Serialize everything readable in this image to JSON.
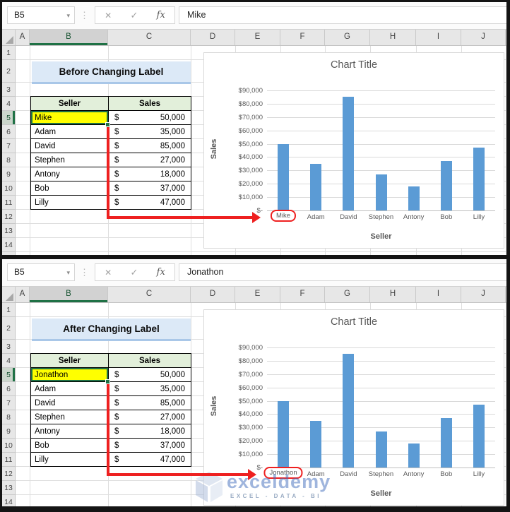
{
  "chart_data": [
    {
      "type": "bar",
      "title": "Chart Title",
      "xlabel": "Seller",
      "ylabel": "Sales",
      "categories": [
        "Mike",
        "Adam",
        "David",
        "Stephen",
        "Antony",
        "Bob",
        "Lilly"
      ],
      "values": [
        50000,
        35000,
        85000,
        27000,
        18000,
        37000,
        47000
      ],
      "ylim": [
        0,
        90000
      ],
      "ytick_labels": [
        "$-",
        "$10,000",
        "$20,000",
        "$30,000",
        "$40,000",
        "$50,000",
        "$60,000",
        "$70,000",
        "$80,000",
        "$90,000"
      ],
      "grid": true,
      "legend": false,
      "bar_color": "#5B9BD5",
      "highlighted_category": "Mike"
    },
    {
      "type": "bar",
      "title": "Chart Title",
      "xlabel": "Seller",
      "ylabel": "Sales",
      "categories": [
        "Jonathon",
        "Adam",
        "David",
        "Stephen",
        "Antony",
        "Bob",
        "Lilly"
      ],
      "values": [
        50000,
        35000,
        85000,
        27000,
        18000,
        37000,
        47000
      ],
      "ylim": [
        0,
        90000
      ],
      "ytick_labels": [
        "$-",
        "$10,000",
        "$20,000",
        "$30,000",
        "$40,000",
        "$50,000",
        "$60,000",
        "$70,000",
        "$80,000",
        "$90,000"
      ],
      "grid": true,
      "legend": false,
      "bar_color": "#5B9BD5",
      "highlighted_category": "Jonathon"
    }
  ],
  "panels": [
    {
      "label": "before",
      "name_box": "B5",
      "formula_value": "Mike",
      "banner": "Before Changing Label",
      "columns": [
        "A",
        "B",
        "C",
        "D",
        "E",
        "F",
        "G",
        "H",
        "I",
        "J"
      ],
      "selected_column": "B",
      "rows": [
        "1",
        "2",
        "3",
        "4",
        "5",
        "6",
        "7",
        "8",
        "9",
        "10",
        "11",
        "12",
        "13",
        "14"
      ],
      "selected_row": "5",
      "formula_icons": {
        "dropdown": "▾",
        "separator": "⋮",
        "cancel": "✕",
        "enter": "✓",
        "fx": "fx"
      },
      "table": {
        "headers": [
          "Seller",
          "Sales"
        ],
        "currency": "$",
        "rows": [
          [
            "Mike",
            "50,000"
          ],
          [
            "Adam",
            "35,000"
          ],
          [
            "David",
            "85,000"
          ],
          [
            "Stephen",
            "27,000"
          ],
          [
            "Antony",
            "18,000"
          ],
          [
            "Bob",
            "37,000"
          ],
          [
            "Lilly",
            "47,000"
          ]
        ],
        "highlighted_row": "Mike"
      }
    },
    {
      "label": "after",
      "name_box": "B5",
      "formula_value": "Jonathon",
      "banner": "After Changing Label",
      "columns": [
        "A",
        "B",
        "C",
        "D",
        "E",
        "F",
        "G",
        "H",
        "I",
        "J"
      ],
      "selected_column": "B",
      "rows": [
        "1",
        "2",
        "3",
        "4",
        "5",
        "6",
        "7",
        "8",
        "9",
        "10",
        "11",
        "12",
        "13",
        "14"
      ],
      "selected_row": "5",
      "formula_icons": {
        "dropdown": "▾",
        "separator": "⋮",
        "cancel": "✕",
        "enter": "✓",
        "fx": "fx"
      },
      "table": {
        "headers": [
          "Seller",
          "Sales"
        ],
        "currency": "$",
        "rows": [
          [
            "Jonathon",
            "50,000"
          ],
          [
            "Adam",
            "35,000"
          ],
          [
            "David",
            "85,000"
          ],
          [
            "Stephen",
            "27,000"
          ],
          [
            "Antony",
            "18,000"
          ],
          [
            "Bob",
            "37,000"
          ],
          [
            "Lilly",
            "47,000"
          ]
        ],
        "highlighted_row": "Jonathon"
      },
      "watermark": {
        "name": "exceldemy",
        "tagline": "EXCEL - DATA - BI"
      }
    }
  ],
  "colors": {
    "bar": "#5B9BD5",
    "selection_green": "#1F7145",
    "highlight_yellow": "#FFFF00",
    "table_header_fill": "#E2EFDA",
    "banner_fill": "#DCE9F7",
    "banner_border": "#A9C7E8",
    "annotation_red": "#EE2020",
    "axis_text": "#595959",
    "chart_gridline": "#D9D9D9"
  }
}
